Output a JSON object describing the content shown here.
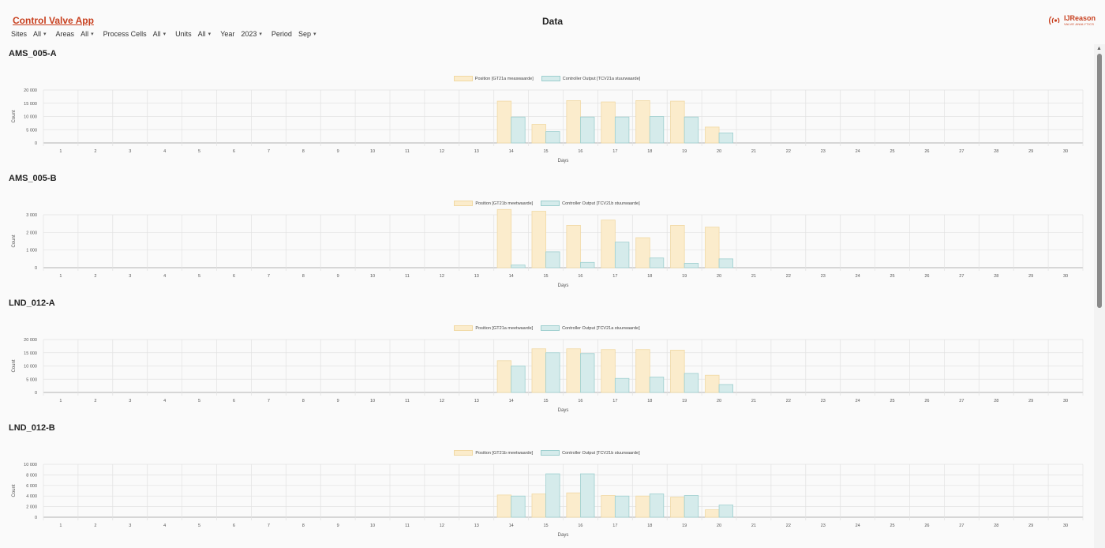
{
  "app": {
    "title": "Control Valve App",
    "page_title": "Data",
    "logo_text": "IJReason",
    "logo_sub": "VALVE ANALYTICS"
  },
  "filters": [
    {
      "label": "Sites",
      "value": "All"
    },
    {
      "label": "Areas",
      "value": "All"
    },
    {
      "label": "Process Cells",
      "value": "All"
    },
    {
      "label": "Units",
      "value": "All"
    },
    {
      "label": "Year",
      "value": "2023"
    },
    {
      "label": "Period",
      "value": "Sep"
    }
  ],
  "colors": {
    "position_fill": "#fbeccc",
    "position_border": "#f1d9a4",
    "output_fill": "#d5ebeb",
    "output_border": "#9ecfcf",
    "accent": "#c8401f"
  },
  "chart_data": [
    {
      "type": "bar",
      "title": "AMS_005-A",
      "xlabel": "Days",
      "ylabel": "Count",
      "categories": [
        "1",
        "2",
        "3",
        "4",
        "5",
        "6",
        "7",
        "8",
        "9",
        "10",
        "11",
        "12",
        "13",
        "14",
        "15",
        "16",
        "17",
        "18",
        "19",
        "20",
        "21",
        "22",
        "23",
        "24",
        "25",
        "26",
        "27",
        "28",
        "29",
        "30"
      ],
      "ylim": [
        0,
        20000
      ],
      "yticks": [
        0,
        5000,
        10000,
        15000,
        20000
      ],
      "ytick_labels": [
        "0",
        "5 000",
        "10 000",
        "15 000",
        "20 000"
      ],
      "series": [
        {
          "name": "Position [GT21a measwaarde]",
          "values": [
            0,
            0,
            0,
            0,
            0,
            0,
            0,
            0,
            0,
            0,
            0,
            0,
            0,
            15800,
            7000,
            16000,
            15500,
            16000,
            15800,
            6000,
            0,
            0,
            0,
            0,
            0,
            0,
            0,
            0,
            0,
            0
          ]
        },
        {
          "name": "Controller Output [TCV21a stuurwaarde]",
          "values": [
            0,
            0,
            0,
            0,
            0,
            0,
            0,
            0,
            0,
            0,
            0,
            0,
            0,
            9800,
            4300,
            9800,
            9800,
            10000,
            9800,
            3800,
            0,
            0,
            0,
            0,
            0,
            0,
            0,
            0,
            0,
            0
          ]
        }
      ]
    },
    {
      "type": "bar",
      "title": "AMS_005-B",
      "xlabel": "Days",
      "ylabel": "Count",
      "categories": [
        "1",
        "2",
        "3",
        "4",
        "5",
        "6",
        "7",
        "8",
        "9",
        "10",
        "11",
        "12",
        "13",
        "14",
        "15",
        "16",
        "17",
        "18",
        "19",
        "20",
        "21",
        "22",
        "23",
        "24",
        "25",
        "26",
        "27",
        "28",
        "29",
        "30"
      ],
      "ylim": [
        0,
        3000
      ],
      "yticks": [
        0,
        1000,
        2000,
        3000
      ],
      "ytick_labels": [
        "0",
        "1 000",
        "2 000",
        "3 000"
      ],
      "series": [
        {
          "name": "Position [GT21b meetwaarde]",
          "values": [
            0,
            0,
            0,
            0,
            0,
            0,
            0,
            0,
            0,
            0,
            0,
            0,
            0,
            3300,
            3200,
            2400,
            2700,
            1700,
            2400,
            2300,
            0,
            0,
            0,
            0,
            0,
            0,
            0,
            0,
            0,
            0
          ]
        },
        {
          "name": "Controller Output [TCV21b stuurwaarde]",
          "values": [
            0,
            0,
            0,
            0,
            0,
            0,
            0,
            0,
            0,
            0,
            0,
            0,
            0,
            150,
            900,
            300,
            1450,
            550,
            250,
            500,
            0,
            0,
            0,
            0,
            0,
            0,
            0,
            0,
            0,
            0
          ]
        }
      ]
    },
    {
      "type": "bar",
      "title": "LND_012-A",
      "xlabel": "Days",
      "ylabel": "Count",
      "categories": [
        "1",
        "2",
        "3",
        "4",
        "5",
        "6",
        "7",
        "8",
        "9",
        "10",
        "11",
        "12",
        "13",
        "14",
        "15",
        "16",
        "17",
        "18",
        "19",
        "20",
        "21",
        "22",
        "23",
        "24",
        "25",
        "26",
        "27",
        "28",
        "29",
        "30"
      ],
      "ylim": [
        0,
        20000
      ],
      "yticks": [
        0,
        5000,
        10000,
        15000,
        20000
      ],
      "ytick_labels": [
        "0",
        "5 000",
        "10 000",
        "15 000",
        "20 000"
      ],
      "series": [
        {
          "name": "Position [GT21a meetwaarde]",
          "values": [
            0,
            0,
            0,
            0,
            0,
            0,
            0,
            0,
            0,
            0,
            0,
            0,
            0,
            12000,
            16500,
            16500,
            16200,
            16200,
            16000,
            6500,
            0,
            0,
            0,
            0,
            0,
            0,
            0,
            0,
            0,
            0
          ]
        },
        {
          "name": "Controller Output [TCV21a stuurwaarde]",
          "values": [
            0,
            0,
            0,
            0,
            0,
            0,
            0,
            0,
            0,
            0,
            0,
            0,
            0,
            10000,
            15000,
            14700,
            5300,
            5800,
            7200,
            3000,
            0,
            0,
            0,
            0,
            0,
            0,
            0,
            0,
            0,
            0
          ]
        }
      ]
    },
    {
      "type": "bar",
      "title": "LND_012-B",
      "xlabel": "Days",
      "ylabel": "Count",
      "categories": [
        "1",
        "2",
        "3",
        "4",
        "5",
        "6",
        "7",
        "8",
        "9",
        "10",
        "11",
        "12",
        "13",
        "14",
        "15",
        "16",
        "17",
        "18",
        "19",
        "20",
        "21",
        "22",
        "23",
        "24",
        "25",
        "26",
        "27",
        "28",
        "29",
        "30"
      ],
      "ylim": [
        0,
        10000
      ],
      "yticks": [
        0,
        2000,
        4000,
        6000,
        8000,
        10000
      ],
      "ytick_labels": [
        "0",
        "2 000",
        "4 000",
        "6 000",
        "8 000",
        "10 000"
      ],
      "series": [
        {
          "name": "Position [GT21b meetwaarde]",
          "values": [
            0,
            0,
            0,
            0,
            0,
            0,
            0,
            0,
            0,
            0,
            0,
            0,
            0,
            4200,
            4400,
            4600,
            4100,
            4000,
            3800,
            1400,
            0,
            0,
            0,
            0,
            0,
            0,
            0,
            0,
            0,
            0
          ]
        },
        {
          "name": "Controller Output [TCV21b stuurwaarde]",
          "values": [
            0,
            0,
            0,
            0,
            0,
            0,
            0,
            0,
            0,
            0,
            0,
            0,
            0,
            4000,
            8200,
            8200,
            4000,
            4400,
            4100,
            2300,
            0,
            0,
            0,
            0,
            0,
            0,
            0,
            0,
            0,
            0
          ]
        }
      ]
    }
  ]
}
